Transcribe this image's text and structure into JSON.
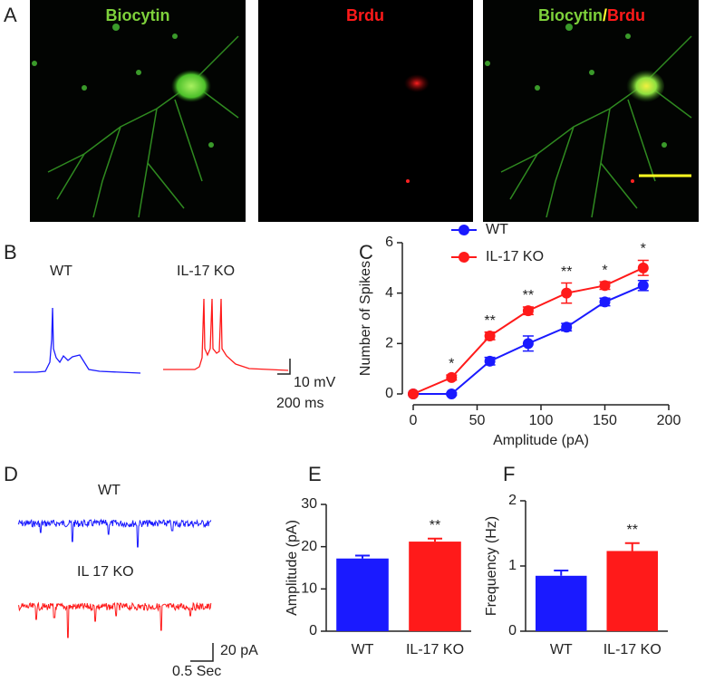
{
  "panel_labels": [
    "A",
    "B",
    "C",
    "D",
    "E",
    "F"
  ],
  "panel_a": {
    "titles": [
      "Biocytin",
      "Brdu",
      "Biocytin",
      "/",
      "Brdu"
    ]
  },
  "panel_b": {
    "labels": [
      "WT",
      "IL-17 KO"
    ],
    "scale_y": "10 mV",
    "scale_x": "200 ms"
  },
  "panel_d": {
    "labels": [
      "WT",
      "IL 17 KO"
    ],
    "scale_y": "20 pA",
    "scale_x": "0.5 Sec"
  },
  "chart_data": [
    {
      "type": "line",
      "xlabel": "Amplitude (pA)",
      "ylabel": "Number of Spikes",
      "x": [
        0,
        30,
        60,
        90,
        120,
        150,
        180
      ],
      "xlim": [
        0,
        200
      ],
      "xticks": [
        0,
        50,
        100,
        150,
        200
      ],
      "ylim": [
        0,
        6
      ],
      "yticks": [
        0,
        2,
        4,
        6
      ],
      "series": [
        {
          "name": "WT",
          "color": "#1a1aff",
          "values": [
            0,
            0,
            1.3,
            2.0,
            2.65,
            3.65,
            4.3
          ],
          "errors": [
            0,
            0.05,
            0.15,
            0.3,
            0.15,
            0.15,
            0.2
          ]
        },
        {
          "name": "IL-17 KO",
          "color": "#ff1a1a",
          "values": [
            0,
            0.65,
            2.3,
            3.3,
            4.0,
            4.3,
            5.0
          ],
          "errors": [
            0,
            0.1,
            0.15,
            0.15,
            0.4,
            0.15,
            0.3
          ]
        }
      ],
      "annotations": [
        null,
        "*",
        "**",
        "**",
        "**",
        "*",
        "*"
      ],
      "legend": "upper left"
    },
    {
      "type": "bar",
      "ylabel": "Amplitude (pA)",
      "categories": [
        "WT",
        "IL-17 KO"
      ],
      "values": [
        17.2,
        21.2
      ],
      "errors": [
        0.7,
        0.7
      ],
      "colors": [
        "#1a1aff",
        "#ff1a1a"
      ],
      "ylim": [
        0,
        30
      ],
      "yticks": [
        0,
        10,
        20,
        30
      ],
      "annotations": [
        null,
        "**"
      ]
    },
    {
      "type": "bar",
      "ylabel": "Frequency (Hz)",
      "categories": [
        "WT",
        "IL-17 KO"
      ],
      "values": [
        0.85,
        1.23
      ],
      "errors": [
        0.08,
        0.12
      ],
      "colors": [
        "#1a1aff",
        "#ff1a1a"
      ],
      "ylim": [
        0,
        2
      ],
      "yticks": [
        0,
        1,
        2
      ],
      "annotations": [
        null,
        "**"
      ]
    }
  ]
}
